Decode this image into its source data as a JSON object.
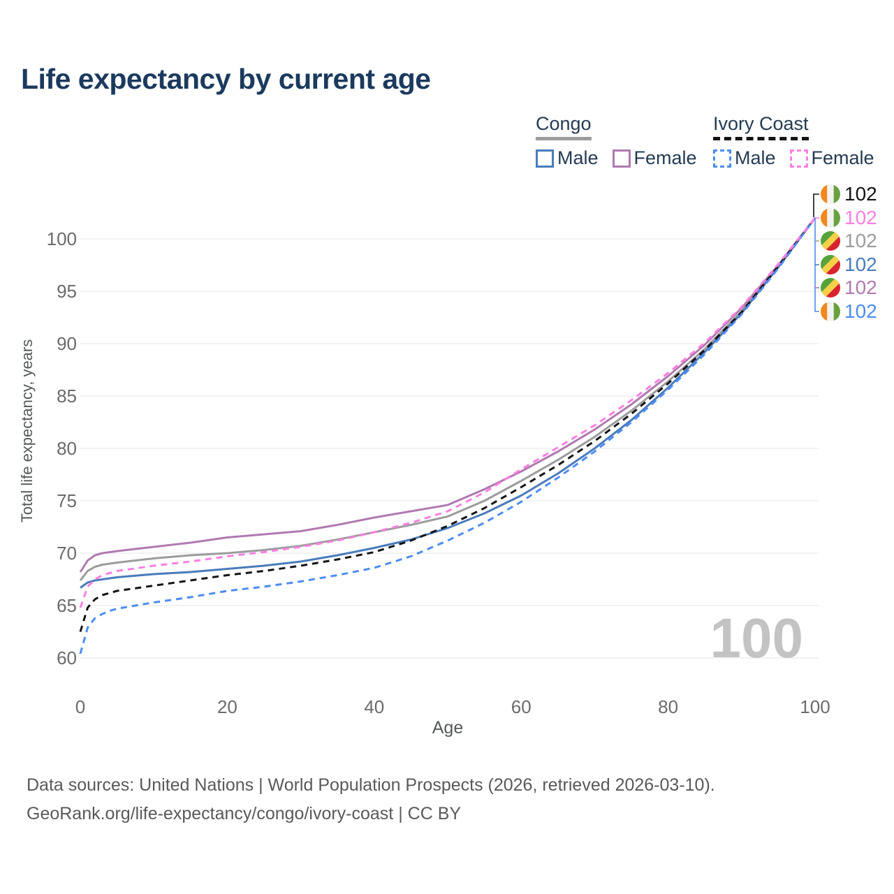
{
  "title": "Life expectancy by current age",
  "legend": {
    "groups": [
      {
        "id": "congo",
        "label": "Congo",
        "line_style": "solid",
        "items": [
          {
            "id": "congo-male",
            "label": "Male"
          },
          {
            "id": "congo-female",
            "label": "Female"
          }
        ]
      },
      {
        "id": "ivory-coast",
        "label": "Ivory Coast",
        "line_style": "dashed",
        "items": [
          {
            "id": "ivory-coast-male",
            "label": "Male"
          },
          {
            "id": "ivory-coast-female",
            "label": "Female"
          }
        ]
      }
    ]
  },
  "colors": {
    "title": "#1b3a5e",
    "congo": "#9c9c9c",
    "congo_male": "#4a7cbb",
    "congo_female": "#b07ab0",
    "ivory": "#141414",
    "ic_male": "#4d8cf2",
    "ic_female": "#fc7fe1",
    "axis_text": "#6b6b6b",
    "grid": "#e9e9e9",
    "watermark": "#c3c3c3",
    "flag_congo_green": "#56a339",
    "flag_congo_yellow": "#f5d048",
    "flag_congo_red": "#d8232f",
    "flag_ic_orange": "#f5871c",
    "flag_ic_white": "#f2f2f2",
    "flag_ic_green": "#69a13e"
  },
  "footer": {
    "line1": "Data sources: United Nations | World Population Prospects (2026, retrieved 2026-03-10).",
    "line2": "GeoRank.org/life-expectancy/congo/ivory-coast | CC BY"
  },
  "chart_data": {
    "type": "line",
    "title": "Life expectancy by current age",
    "xlabel": "Age",
    "ylabel": "Total life expectancy, years",
    "xlim": [
      0,
      100
    ],
    "ylim": [
      60,
      103
    ],
    "x_ticks": [
      0,
      20,
      40,
      60,
      80,
      100
    ],
    "y_ticks": [
      60,
      65,
      70,
      75,
      80,
      85,
      90,
      95,
      100
    ],
    "grid": true,
    "legend_position": "top-right",
    "watermark": "100",
    "x": [
      0,
      1,
      2,
      3,
      4,
      5,
      10,
      15,
      20,
      25,
      30,
      35,
      40,
      45,
      50,
      55,
      60,
      65,
      70,
      75,
      80,
      85,
      90,
      95,
      100
    ],
    "series": [
      {
        "id": "congo",
        "name": "Congo",
        "color": "#9c9c9c",
        "dashed": false,
        "values": [
          67.4,
          68.3,
          68.7,
          68.9,
          69.0,
          69.1,
          69.5,
          69.8,
          70.0,
          70.3,
          70.7,
          71.3,
          72.0,
          72.7,
          73.5,
          75.0,
          76.9,
          78.9,
          81.1,
          83.6,
          86.4,
          89.5,
          93.1,
          97.4,
          102
        ]
      },
      {
        "id": "congo-male",
        "name": "Congo Male",
        "color": "#4a7cbb",
        "dashed": false,
        "values": [
          66.7,
          67.2,
          67.4,
          67.5,
          67.6,
          67.7,
          68.0,
          68.2,
          68.5,
          68.8,
          69.2,
          69.8,
          70.5,
          71.3,
          72.4,
          73.8,
          75.5,
          77.6,
          80.0,
          82.7,
          85.8,
          89.2,
          92.9,
          97.3,
          102
        ]
      },
      {
        "id": "congo-female",
        "name": "Congo Female",
        "color": "#b07ab0",
        "dashed": false,
        "values": [
          68.2,
          69.3,
          69.8,
          70.0,
          70.1,
          70.2,
          70.6,
          71.0,
          71.5,
          71.8,
          72.1,
          72.7,
          73.4,
          74.0,
          74.6,
          76.1,
          77.8,
          79.7,
          81.8,
          84.2,
          86.9,
          89.9,
          93.4,
          97.5,
          102
        ]
      },
      {
        "id": "ivory-coast",
        "name": "Ivory Coast",
        "color": "#141414",
        "dashed": true,
        "values": [
          62.5,
          64.8,
          65.6,
          66.0,
          66.2,
          66.4,
          66.9,
          67.4,
          67.9,
          68.3,
          68.8,
          69.4,
          70.1,
          71.2,
          72.6,
          74.3,
          76.3,
          78.4,
          80.7,
          83.3,
          86.2,
          89.4,
          93.0,
          97.4,
          102
        ]
      },
      {
        "id": "ivory-coast-male",
        "name": "Ivory Coast Male",
        "color": "#4d8cf2",
        "dashed": true,
        "values": [
          60.4,
          62.9,
          63.8,
          64.2,
          64.5,
          64.7,
          65.3,
          65.8,
          66.4,
          66.8,
          67.3,
          67.9,
          68.6,
          69.7,
          71.2,
          72.9,
          74.9,
          77.2,
          79.7,
          82.5,
          85.6,
          89.0,
          92.8,
          97.2,
          102
        ]
      },
      {
        "id": "ivory-coast-female",
        "name": "Ivory Coast Female",
        "color": "#fc7fe1",
        "dashed": true,
        "values": [
          64.8,
          66.8,
          67.5,
          67.9,
          68.1,
          68.3,
          68.8,
          69.2,
          69.7,
          70.1,
          70.6,
          71.2,
          72.0,
          72.9,
          74.0,
          75.8,
          78.0,
          80.1,
          82.2,
          84.6,
          87.2,
          90.1,
          93.5,
          97.6,
          102
        ]
      }
    ],
    "end_labels": [
      {
        "series": "ivory-coast",
        "value": "102",
        "flag": "ivory-coast",
        "color": "#141414"
      },
      {
        "series": "ivory-coast-female",
        "value": "102",
        "flag": "ivory-coast",
        "color": "#fc7fe1"
      },
      {
        "series": "congo",
        "value": "102",
        "flag": "congo",
        "color": "#9c9c9c"
      },
      {
        "series": "congo-male",
        "value": "102",
        "flag": "congo",
        "color": "#4a7cbb"
      },
      {
        "series": "congo-female",
        "value": "102",
        "flag": "congo",
        "color": "#b07ab0"
      },
      {
        "series": "ivory-coast-male",
        "value": "102",
        "flag": "ivory-coast",
        "color": "#4d8cf2"
      }
    ]
  }
}
